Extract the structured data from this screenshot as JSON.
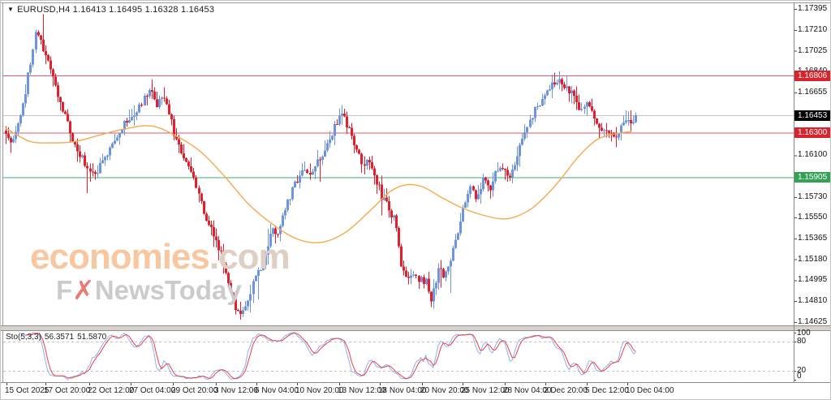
{
  "window": {
    "dropdown_icon": "▼",
    "symbol_line": "EURUSD,H4  1.16413 1.16495 1.16328 1.16453"
  },
  "watermark": {
    "line1_main": "economies",
    "line1_suffix": ".com",
    "line2_pre": "F",
    "line2_x": "✗",
    "line2_post": "NewsToday"
  },
  "chart_data": {
    "type": "candlestick",
    "symbol": "EURUSD",
    "timeframe": "H4",
    "quote": {
      "open": "1.16413",
      "high": "1.16495",
      "low": "1.16328",
      "close": "1.16453"
    },
    "y_axis_ticks": [
      "1.17395",
      "1.17210",
      "1.17025",
      "1.16840",
      "1.16655",
      "1.16100",
      "1.15730",
      "1.15550",
      "1.15365",
      "1.15180",
      "1.14995",
      "1.14810",
      "1.14625"
    ],
    "x_axis_labels": [
      "15 Oct 2025",
      "17 Oct 20:00",
      "22 Oct 12:00",
      "27 Oct 04:00",
      "29 Oct 20:00",
      "3 Nov 12:00",
      "6 Nov 04:00",
      "10 Nov 20:00",
      "13 Nov 12:00",
      "18 Nov 04:00",
      "20 Nov 20:00",
      "25 Nov 12:00",
      "28 Nov 04:00",
      "2 Dec 20:00",
      "5 Dec 12:00",
      "10 Dec 04:00"
    ],
    "levels": [
      {
        "price": 1.16806,
        "label": "1.16806",
        "line_color": "#e0566a",
        "badge_bg": "#d8242e",
        "type": "resistance"
      },
      {
        "price": 1.163,
        "label": "1.16300",
        "line_color": "#e0566a",
        "badge_bg": "#d8242e",
        "type": "resistance"
      },
      {
        "price": 1.15905,
        "label": "1.15905",
        "line_color": "#45ab72",
        "badge_bg": "#33a156",
        "type": "support"
      }
    ],
    "current_price": {
      "value": 1.16453,
      "label": "1.16453",
      "line_color": "#c4c4c4",
      "badge_bg": "#000000"
    },
    "candle_colors": {
      "bull": "#6d93e3",
      "bear": "#e61e2b"
    },
    "ma_color": "#f5a94e",
    "price_path": [
      [
        6,
        1.1632
      ],
      [
        14,
        1.162
      ],
      [
        22,
        1.1638
      ],
      [
        30,
        1.1665
      ],
      [
        38,
        1.17
      ],
      [
        44,
        1.1722
      ],
      [
        50,
        1.1707
      ],
      [
        58,
        1.169
      ],
      [
        66,
        1.1672
      ],
      [
        74,
        1.1655
      ],
      [
        82,
        1.1638
      ],
      [
        92,
        1.1618
      ],
      [
        102,
        1.1606
      ],
      [
        112,
        1.1592
      ],
      [
        122,
        1.16
      ],
      [
        132,
        1.1615
      ],
      [
        142,
        1.1628
      ],
      [
        152,
        1.1638
      ],
      [
        162,
        1.1645
      ],
      [
        172,
        1.1655
      ],
      [
        182,
        1.1667
      ],
      [
        192,
        1.1655
      ],
      [
        200,
        1.1662
      ],
      [
        208,
        1.1645
      ],
      [
        216,
        1.1622
      ],
      [
        224,
        1.161
      ],
      [
        232,
        1.16
      ],
      [
        240,
        1.1585
      ],
      [
        248,
        1.1562
      ],
      [
        256,
        1.1548
      ],
      [
        264,
        1.1533
      ],
      [
        272,
        1.152
      ],
      [
        280,
        1.15
      ],
      [
        288,
        1.1478
      ],
      [
        295,
        1.1467
      ],
      [
        302,
        1.148
      ],
      [
        310,
        1.1495
      ],
      [
        318,
        1.1508
      ],
      [
        326,
        1.1522
      ],
      [
        334,
        1.1548
      ],
      [
        342,
        1.1538
      ],
      [
        350,
        1.1562
      ],
      [
        358,
        1.1578
      ],
      [
        366,
        1.159
      ],
      [
        374,
        1.16
      ],
      [
        382,
        1.1592
      ],
      [
        390,
        1.1603
      ],
      [
        398,
        1.161
      ],
      [
        406,
        1.1625
      ],
      [
        414,
        1.164
      ],
      [
        422,
        1.1645
      ],
      [
        430,
        1.1632
      ],
      [
        438,
        1.1618
      ],
      [
        446,
        1.16
      ],
      [
        454,
        1.1608
      ],
      [
        462,
        1.1588
      ],
      [
        470,
        1.1572
      ],
      [
        478,
        1.1562
      ],
      [
        486,
        1.1552
      ],
      [
        492,
        1.1515
      ],
      [
        500,
        1.15
      ],
      [
        508,
        1.1505
      ],
      [
        516,
        1.1498
      ],
      [
        524,
        1.15
      ],
      [
        530,
        1.1482
      ],
      [
        538,
        1.1508
      ],
      [
        546,
        1.1505
      ],
      [
        554,
        1.1518
      ],
      [
        562,
        1.154
      ],
      [
        570,
        1.1562
      ],
      [
        578,
        1.158
      ],
      [
        586,
        1.1572
      ],
      [
        594,
        1.1588
      ],
      [
        602,
        1.1578
      ],
      [
        610,
        1.1596
      ],
      [
        618,
        1.16
      ],
      [
        626,
        1.1588
      ],
      [
        634,
        1.1605
      ],
      [
        642,
        1.1625
      ],
      [
        650,
        1.1638
      ],
      [
        658,
        1.165
      ],
      [
        666,
        1.1658
      ],
      [
        674,
        1.1668
      ],
      [
        682,
        1.1675
      ],
      [
        690,
        1.1676
      ],
      [
        698,
        1.167
      ],
      [
        706,
        1.1662
      ],
      [
        714,
        1.1652
      ],
      [
        722,
        1.1658
      ],
      [
        730,
        1.1642
      ],
      [
        738,
        1.1635
      ],
      [
        746,
        1.163
      ],
      [
        754,
        1.1626
      ],
      [
        762,
        1.1632
      ],
      [
        770,
        1.164
      ],
      [
        777,
        1.1636
      ],
      [
        783,
        1.16453
      ]
    ],
    "ma_path": [
      [
        6,
        1.1634
      ],
      [
        35,
        1.16225
      ],
      [
        60,
        1.1621
      ],
      [
        90,
        1.1622
      ],
      [
        120,
        1.16275
      ],
      [
        150,
        1.1633
      ],
      [
        185,
        1.1636
      ],
      [
        215,
        1.16275
      ],
      [
        245,
        1.1614
      ],
      [
        275,
        1.1592
      ],
      [
        305,
        1.1567
      ],
      [
        335,
        1.1549
      ],
      [
        365,
        1.1536
      ],
      [
        395,
        1.1533
      ],
      [
        425,
        1.1542
      ],
      [
        455,
        1.1561
      ],
      [
        480,
        1.1578
      ],
      [
        500,
        1.1584
      ],
      [
        520,
        1.1582
      ],
      [
        545,
        1.1572
      ],
      [
        570,
        1.1563
      ],
      [
        600,
        1.1556
      ],
      [
        625,
        1.1554
      ],
      [
        650,
        1.1561
      ],
      [
        670,
        1.1573
      ],
      [
        690,
        1.1589
      ],
      [
        705,
        1.1603
      ],
      [
        720,
        1.1615
      ],
      [
        735,
        1.1624
      ],
      [
        750,
        1.1628
      ],
      [
        765,
        1.163
      ],
      [
        777,
        1.1631
      ]
    ],
    "stochastic": {
      "label": "Sto(5,3,3)",
      "k_value": "56.3571",
      "d_value": "51.5870",
      "k_color": "#8fb0ea",
      "d_color": "#e8404a",
      "levels": [
        80,
        20
      ],
      "scale_labels": [
        "100",
        "80",
        "20",
        "0"
      ]
    }
  }
}
